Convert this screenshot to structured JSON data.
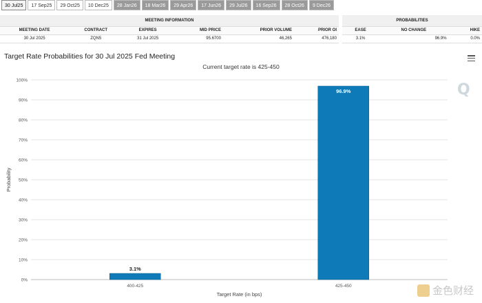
{
  "tabs": [
    {
      "label": "30 Jul25",
      "state": "active"
    },
    {
      "label": "17 Sep25",
      "state": "light"
    },
    {
      "label": "29 Oct25",
      "state": "light"
    },
    {
      "label": "10 Dec25",
      "state": "light"
    },
    {
      "label": "28 Jan26",
      "state": "dim"
    },
    {
      "label": "18 Mar26",
      "state": "dim"
    },
    {
      "label": "29 Apr26",
      "state": "dim"
    },
    {
      "label": "17 Jun26",
      "state": "dim"
    },
    {
      "label": "29 Jul26",
      "state": "dim"
    },
    {
      "label": "16 Sep26",
      "state": "dim"
    },
    {
      "label": "28 Oct26",
      "state": "dim"
    },
    {
      "label": "9 Dec26",
      "state": "dim"
    }
  ],
  "meeting_info": {
    "title": "MEETING INFORMATION",
    "headers": [
      "MEETING DATE",
      "CONTRACT",
      "EXPIRES",
      "MID PRICE",
      "PRIOR VOLUME",
      "PRIOR OI"
    ],
    "row": [
      "30 Jul 2025",
      "ZQN5",
      "31 Jul 2025",
      "95.6700",
      "46,265",
      "476,180"
    ]
  },
  "probabilities": {
    "title": "PROBABILITIES",
    "headers": [
      "EASE",
      "NO CHANGE",
      "HIKE"
    ],
    "row": [
      "3.1%",
      "96.9%",
      "0.0%"
    ]
  },
  "watermark": {
    "text": "金色财经"
  },
  "logo_text": "Q",
  "chart_data": {
    "type": "bar",
    "title": "Target Rate Probabilities for 30 Jul 2025 Fed Meeting",
    "subtitle": "Current target rate is 425-450",
    "xlabel": "Target Rate (in bps)",
    "ylabel": "Probability",
    "categories": [
      "400-425",
      "425-450"
    ],
    "values": [
      3.1,
      96.9
    ],
    "data_labels": [
      "3.1%",
      "96.9%"
    ],
    "ylim": [
      0,
      100
    ],
    "yticks": [
      0,
      10,
      20,
      30,
      40,
      50,
      60,
      70,
      80,
      90,
      100
    ],
    "ytick_labels": [
      "0%",
      "10%",
      "20%",
      "30%",
      "40%",
      "50%",
      "60%",
      "70%",
      "80%",
      "90%",
      "100%"
    ],
    "grid": true,
    "bar_color": "#0e7bb8"
  }
}
